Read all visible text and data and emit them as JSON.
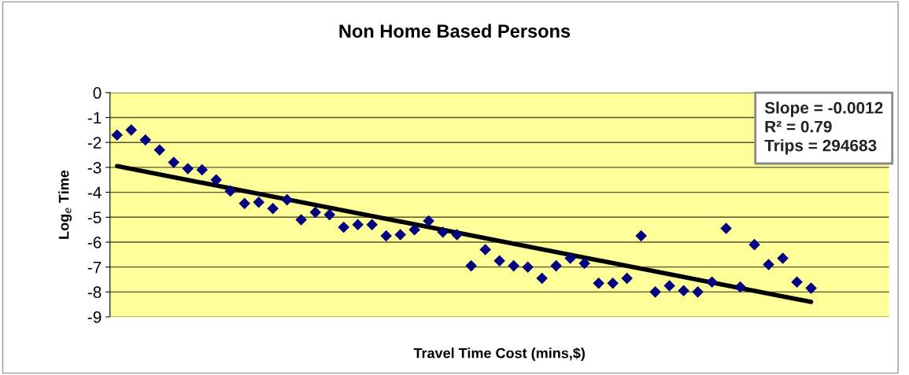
{
  "chart_data": {
    "type": "scatter",
    "title": "Non Home Based Persons",
    "xlabel": "Travel Time Cost (mins,$)",
    "ylabel": "Log$_{e}$ Time",
    "categories": [
      null,
      null,
      null,
      null,
      null,
      null,
      null,
      null,
      null,
      null,
      null,
      null,
      null,
      null,
      null,
      null,
      null,
      null,
      null,
      null,
      null,
      null,
      null,
      null,
      null,
      null,
      null,
      null,
      null,
      null,
      null,
      null,
      null,
      null,
      null,
      null,
      null,
      null,
      null,
      null,
      null,
      null,
      null,
      null,
      null,
      null,
      null,
      null,
      null,
      null,
      null,
      null,
      null,
      null,
      null
    ],
    "series": [
      {
        "color": "#000080",
        "marker": "diamond",
        "values": [
          -1.7,
          -1.5,
          -1.9,
          -2.3,
          -2.8,
          -3.05,
          -3.1,
          -3.5,
          -3.95,
          -4.45,
          -4.4,
          -4.65,
          -4.3,
          -5.1,
          -4.8,
          -4.9,
          -5.4,
          -5.3,
          -5.3,
          -5.75,
          -5.7,
          -5.5,
          -5.15,
          -5.6,
          -5.7,
          -6.95,
          -6.3,
          -6.75,
          -6.95,
          -7.0,
          -7.45,
          -6.95,
          -6.65,
          -6.85,
          -7.65,
          -7.65,
          -7.45,
          -5.75,
          -8.0,
          -7.75,
          -7.95,
          -8.0,
          -7.6,
          -5.45,
          -7.8,
          -6.1,
          -6.9,
          -6.65,
          -7.6,
          -7.85,
          null,
          null,
          null,
          null,
          null
        ]
      },
      {
        "type": "line",
        "color": "#000000",
        "marker": "none",
        "line_style": "solid",
        "values": [
          -2.95,
          null,
          null,
          null,
          null,
          null,
          null,
          null,
          null,
          null,
          null,
          null,
          null,
          null,
          null,
          null,
          null,
          null,
          null,
          null,
          null,
          null,
          null,
          null,
          null,
          null,
          null,
          null,
          null,
          null,
          null,
          null,
          null,
          null,
          null,
          null,
          null,
          null,
          null,
          null,
          null,
          null,
          null,
          null,
          null,
          null,
          null,
          null,
          null,
          -8.4,
          null,
          null,
          null,
          null,
          null
        ]
      }
    ],
    "ylim": [
      -9,
      0
    ],
    "yticks": [
      -9,
      -8,
      -7,
      -6,
      -5,
      -4,
      -3,
      -2,
      -1,
      0
    ],
    "grid": "y",
    "tick_labels": "y",
    "annotations": [
      "Slope = -0.0012\nR² = 0.79\nTrips = 294683"
    ]
  }
}
